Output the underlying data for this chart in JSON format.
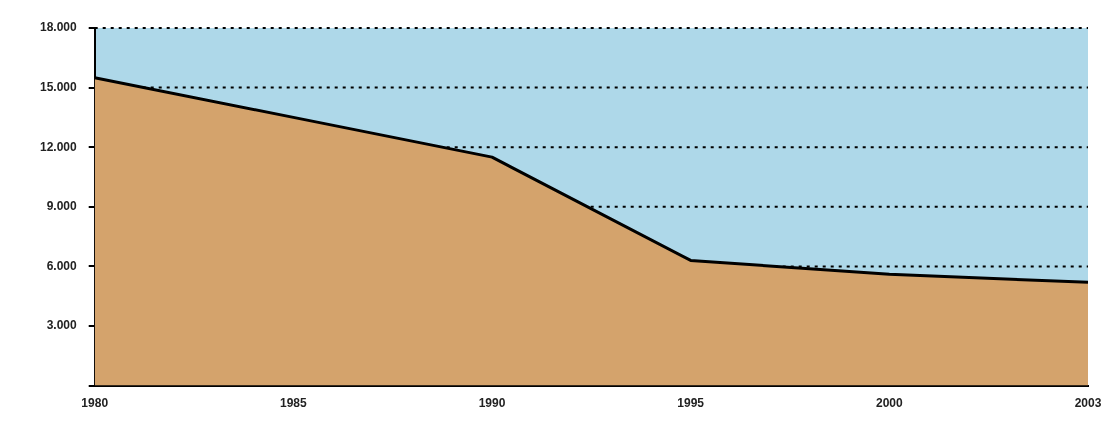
{
  "chart_data": {
    "type": "area",
    "categories": [
      "1980",
      "1985",
      "1990",
      "1995",
      "2000",
      "2003"
    ],
    "series": [
      {
        "color": "#d4a36c",
        "values": [
          15500,
          13500,
          11500,
          6300,
          5600,
          5200
        ]
      }
    ],
    "ylim": [
      0,
      18000
    ],
    "yticks": [
      {
        "value": 0,
        "label": null
      },
      {
        "value": 3000,
        "label": "3.000"
      },
      {
        "value": 6000,
        "label": "6.000"
      },
      {
        "value": 9000,
        "label": "9.000"
      },
      {
        "value": 12000,
        "label": "12.000"
      },
      {
        "value": 15000,
        "label": "15.000"
      },
      {
        "value": 18000,
        "label": "18.000"
      }
    ],
    "bands": [
      {
        "axis": "y",
        "from": 0,
        "to": 18000,
        "color": "#aed8e9"
      }
    ],
    "grid": "y",
    "legend": false,
    "marker": "none",
    "line_style": "solid"
  }
}
